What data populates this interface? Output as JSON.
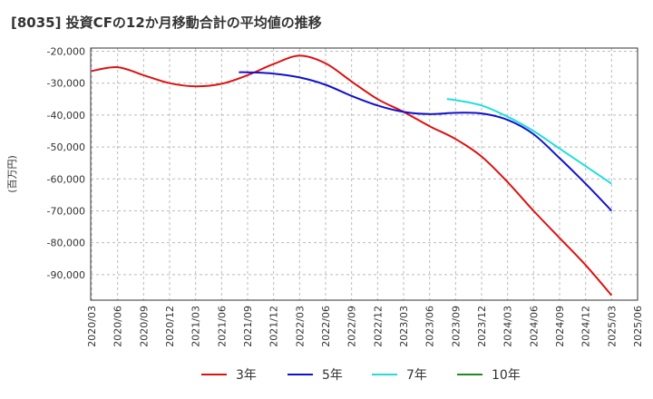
{
  "title": "[8035]  投資CFの12か月移動合計の平均値の推移",
  "chart_data": {
    "type": "line",
    "ylabel": "(百万円)",
    "ylim": [
      -98000,
      -19000
    ],
    "yticks": [
      -20000,
      -30000,
      -40000,
      -50000,
      -60000,
      -70000,
      -80000,
      -90000
    ],
    "ytick_labels": [
      "-20,000",
      "-30,000",
      "-40,000",
      "-50,000",
      "-60,000",
      "-70,000",
      "-80,000",
      "-90,000"
    ],
    "xlim": [
      "2020-03",
      "2025-06"
    ],
    "xtick_labels": [
      "2020/03",
      "2020/06",
      "2020/09",
      "2020/12",
      "2021/03",
      "2021/06",
      "2021/09",
      "2021/12",
      "2022/03",
      "2022/06",
      "2022/09",
      "2022/12",
      "2023/03",
      "2023/06",
      "2023/09",
      "2023/12",
      "2024/03",
      "2024/06",
      "2024/09",
      "2024/12",
      "2025/03",
      "2025/06"
    ],
    "grid": true,
    "legend_position": "bottom",
    "series": [
      {
        "name": "3年",
        "color": "#dd1111",
        "points": [
          [
            "2020-03",
            -26200
          ],
          [
            "2020-06",
            -25000
          ],
          [
            "2020-09",
            -27500
          ],
          [
            "2020-12",
            -30000
          ],
          [
            "2021-03",
            -31000
          ],
          [
            "2021-06",
            -30200
          ],
          [
            "2021-09",
            -27500
          ],
          [
            "2021-12",
            -24000
          ],
          [
            "2022-03",
            -21400
          ],
          [
            "2022-06",
            -23800
          ],
          [
            "2022-09",
            -29500
          ],
          [
            "2022-12",
            -35000
          ],
          [
            "2023-03",
            -39000
          ],
          [
            "2023-06",
            -43500
          ],
          [
            "2023-09",
            -47500
          ],
          [
            "2023-12",
            -53000
          ],
          [
            "2024-03",
            -61000
          ],
          [
            "2024-06",
            -70000
          ],
          [
            "2024-09",
            -78500
          ],
          [
            "2024-12",
            -87000
          ],
          [
            "2025-03",
            -96500
          ]
        ]
      },
      {
        "name": "5年",
        "color": "#1111cc",
        "points": [
          [
            "2021-08",
            -26600
          ],
          [
            "2021-09",
            -26600
          ],
          [
            "2021-12",
            -27000
          ],
          [
            "2022-03",
            -28200
          ],
          [
            "2022-06",
            -30500
          ],
          [
            "2022-09",
            -34000
          ],
          [
            "2022-12",
            -37000
          ],
          [
            "2023-03",
            -39000
          ],
          [
            "2023-06",
            -39700
          ],
          [
            "2023-09",
            -39300
          ],
          [
            "2023-12",
            -39500
          ],
          [
            "2024-03",
            -41500
          ],
          [
            "2024-06",
            -46000
          ],
          [
            "2024-09",
            -53500
          ],
          [
            "2024-12",
            -61500
          ],
          [
            "2025-03",
            -70000
          ]
        ]
      },
      {
        "name": "7年",
        "color": "#22dddd",
        "points": [
          [
            "2023-08",
            -35000
          ],
          [
            "2023-09",
            -35300
          ],
          [
            "2023-12",
            -37000
          ],
          [
            "2024-03",
            -40500
          ],
          [
            "2024-06",
            -45000
          ],
          [
            "2024-09",
            -50500
          ],
          [
            "2024-12",
            -56000
          ],
          [
            "2025-03",
            -61500
          ]
        ]
      },
      {
        "name": "10年",
        "color": "#228822",
        "points": []
      }
    ]
  }
}
